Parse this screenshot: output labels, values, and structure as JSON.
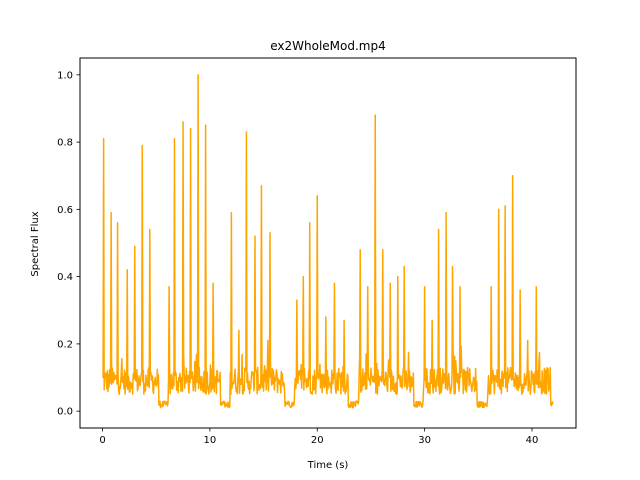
{
  "chart_data": {
    "type": "line",
    "title": "ex2WholeMod.mp4",
    "xlabel": "Time (s)",
    "ylabel": "Spectral Flux",
    "xlim": [
      -2.1,
      44.1
    ],
    "ylim": [
      -0.05,
      1.05
    ],
    "xticks": [
      0,
      10,
      20,
      30,
      40
    ],
    "yticks": [
      0.0,
      0.2,
      0.4,
      0.6,
      0.8,
      1.0
    ],
    "xtick_labels": [
      "0",
      "10",
      "20",
      "30",
      "40"
    ],
    "ytick_labels": [
      "0.0",
      "0.2",
      "0.4",
      "0.6",
      "0.8",
      "1.0"
    ],
    "grid": false,
    "legend": "none",
    "color": "#ffa500",
    "x_end": 42.0,
    "baseline": 0.09,
    "noise": 0.04,
    "segments": [
      [
        0.0,
        5.2
      ],
      [
        6.1,
        11.0
      ],
      [
        11.9,
        17.0
      ],
      [
        17.9,
        22.9
      ],
      [
        23.9,
        29.0
      ],
      [
        29.9,
        34.9
      ],
      [
        35.9,
        41.7
      ]
    ],
    "gap_level": 0.01,
    "peaks": [
      {
        "x": 0.1,
        "y": 0.81
      },
      {
        "x": 0.8,
        "y": 0.59
      },
      {
        "x": 1.4,
        "y": 0.56
      },
      {
        "x": 2.3,
        "y": 0.42
      },
      {
        "x": 3.0,
        "y": 0.49
      },
      {
        "x": 3.7,
        "y": 0.79
      },
      {
        "x": 4.4,
        "y": 0.54
      },
      {
        "x": 6.2,
        "y": 0.37
      },
      {
        "x": 6.7,
        "y": 0.81
      },
      {
        "x": 7.5,
        "y": 0.86
      },
      {
        "x": 8.2,
        "y": 0.84
      },
      {
        "x": 8.9,
        "y": 1.0
      },
      {
        "x": 9.6,
        "y": 0.85
      },
      {
        "x": 10.3,
        "y": 0.38
      },
      {
        "x": 12.0,
        "y": 0.59
      },
      {
        "x": 12.7,
        "y": 0.24
      },
      {
        "x": 13.4,
        "y": 0.83
      },
      {
        "x": 14.2,
        "y": 0.52
      },
      {
        "x": 14.8,
        "y": 0.67
      },
      {
        "x": 15.6,
        "y": 0.53
      },
      {
        "x": 18.1,
        "y": 0.33
      },
      {
        "x": 18.7,
        "y": 0.4
      },
      {
        "x": 19.3,
        "y": 0.56
      },
      {
        "x": 20.0,
        "y": 0.64
      },
      {
        "x": 20.8,
        "y": 0.28
      },
      {
        "x": 21.6,
        "y": 0.38
      },
      {
        "x": 22.5,
        "y": 0.27
      },
      {
        "x": 24.0,
        "y": 0.48
      },
      {
        "x": 24.7,
        "y": 0.37
      },
      {
        "x": 25.4,
        "y": 0.88
      },
      {
        "x": 26.1,
        "y": 0.48
      },
      {
        "x": 26.8,
        "y": 0.38
      },
      {
        "x": 27.5,
        "y": 0.4
      },
      {
        "x": 28.1,
        "y": 0.43
      },
      {
        "x": 30.0,
        "y": 0.37
      },
      {
        "x": 30.7,
        "y": 0.27
      },
      {
        "x": 31.3,
        "y": 0.54
      },
      {
        "x": 32.0,
        "y": 0.59
      },
      {
        "x": 32.6,
        "y": 0.43
      },
      {
        "x": 33.3,
        "y": 0.37
      },
      {
        "x": 36.2,
        "y": 0.37
      },
      {
        "x": 36.9,
        "y": 0.6
      },
      {
        "x": 37.5,
        "y": 0.61
      },
      {
        "x": 38.2,
        "y": 0.7
      },
      {
        "x": 38.9,
        "y": 0.36
      },
      {
        "x": 39.6,
        "y": 0.21
      },
      {
        "x": 40.4,
        "y": 0.37
      }
    ]
  }
}
